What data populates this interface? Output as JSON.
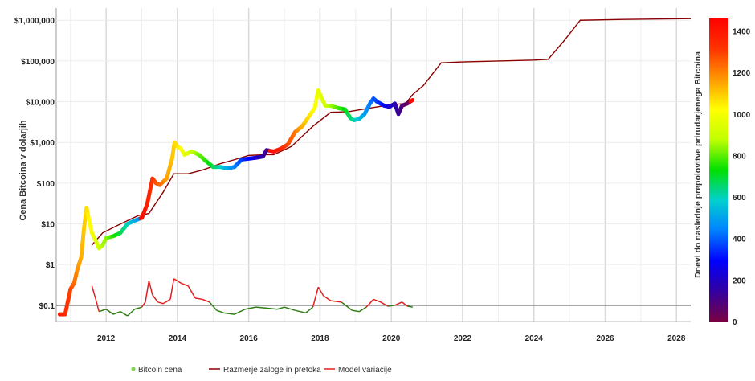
{
  "chart_data": {
    "type": "line",
    "ylabel": "Cena Bitcoina v dolarjih",
    "y_scale": "log",
    "ylim": [
      0.04,
      2000000
    ],
    "xlim": [
      2010.6,
      2028.4
    ],
    "x_ticks": [
      "2012",
      "2014",
      "2016",
      "2018",
      "2020",
      "2022",
      "2024",
      "2026",
      "2028"
    ],
    "y_ticks": [
      "$0.1",
      "$1",
      "$10",
      "$100",
      "$1,000",
      "$10,000",
      "$100,000",
      "$1,000,000"
    ],
    "reference_line_y": 0.1,
    "colorbar": {
      "label": "Dnevi do naslednje prepolovitve prirudarjenega Bitcoina",
      "min": 0,
      "max": 1460,
      "ticks": [
        "0",
        "200",
        "400",
        "600",
        "800",
        "1000",
        "1200",
        "1400"
      ],
      "tick_values": [
        0,
        200,
        400,
        600,
        800,
        1000,
        1200,
        1400
      ],
      "colors": [
        "#7a0043",
        "#3300a0",
        "#0000ff",
        "#0080ff",
        "#00d0d0",
        "#00e000",
        "#c0ff00",
        "#ffff00",
        "#ff9900",
        "#ff3300",
        "#ff0000"
      ]
    },
    "legend": {
      "placement": "bottom",
      "items": [
        {
          "label": "Bitcoin cena",
          "color": "#7ed348",
          "marker": "dot"
        },
        {
          "label": "Razmerje zaloge in pretoka",
          "color": "#8b0000",
          "marker": "line"
        },
        {
          "label": "Model variacije",
          "color": "#e02020",
          "marker": "line"
        }
      ]
    },
    "series": [
      {
        "name": "Bitcoin cena",
        "color_by": "days_to_halving",
        "x": [
          2010.7,
          2010.85,
          2011.0,
          2011.1,
          2011.2,
          2011.3,
          2011.38,
          2011.45,
          2011.5,
          2011.6,
          2011.7,
          2011.8,
          2011.9,
          2012.0,
          2012.2,
          2012.4,
          2012.6,
          2012.8,
          2012.9,
          2013.0,
          2013.15,
          2013.3,
          2013.4,
          2013.5,
          2013.7,
          2013.85,
          2013.92,
          2014.0,
          2014.1,
          2014.2,
          2014.4,
          2014.6,
          2014.8,
          2015.0,
          2015.2,
          2015.4,
          2015.6,
          2015.8,
          2016.0,
          2016.2,
          2016.4,
          2016.5,
          2016.7,
          2016.9,
          2017.1,
          2017.3,
          2017.5,
          2017.7,
          2017.85,
          2017.95,
          2018.05,
          2018.15,
          2018.3,
          2018.5,
          2018.7,
          2018.85,
          2018.95,
          2019.1,
          2019.25,
          2019.4,
          2019.5,
          2019.6,
          2019.8,
          2019.95,
          2020.1,
          2020.2,
          2020.3,
          2020.45,
          2020.6
        ],
        "y": [
          0.06,
          0.06,
          0.25,
          0.35,
          0.8,
          1.5,
          8,
          25,
          15,
          6,
          4,
          2.5,
          3,
          4.5,
          5,
          6,
          10,
          12,
          13,
          14,
          30,
          130,
          100,
          90,
          130,
          400,
          1000,
          800,
          700,
          500,
          600,
          500,
          350,
          250,
          250,
          230,
          250,
          380,
          400,
          420,
          450,
          650,
          600,
          700,
          900,
          1800,
          2500,
          4500,
          7000,
          19000,
          12000,
          8000,
          8000,
          7000,
          6500,
          4000,
          3500,
          3800,
          5000,
          9000,
          12000,
          10000,
          8000,
          7500,
          9000,
          5000,
          8000,
          9000,
          11000
        ],
        "days_to_halving": [
          1380,
          1340,
          1290,
          1240,
          1180,
          1140,
          1100,
          1070,
          1040,
          1000,
          960,
          920,
          860,
          840,
          760,
          680,
          600,
          520,
          480,
          1440,
          1380,
          1320,
          1280,
          1250,
          1160,
          1110,
          1080,
          1060,
          1020,
          980,
          900,
          820,
          760,
          680,
          600,
          520,
          450,
          370,
          300,
          220,
          150,
          110,
          1420,
          1360,
          1290,
          1220,
          1140,
          1060,
          1020,
          980,
          950,
          910,
          860,
          790,
          720,
          660,
          620,
          560,
          500,
          440,
          400,
          370,
          290,
          230,
          180,
          140,
          90,
          40,
          1420
        ]
      },
      {
        "name": "Razmerje zaloge in pretoka",
        "color": "#8b0000",
        "x": [
          2011.6,
          2011.9,
          2012.3,
          2012.6,
          2012.9,
          2013.2,
          2013.6,
          2013.9,
          2014.3,
          2014.7,
          2015.2,
          2015.7,
          2016.0,
          2016.5,
          2016.7,
          2017.2,
          2017.8,
          2018.3,
          2018.8,
          2019.4,
          2020.0,
          2020.4,
          2020.6,
          2020.9,
          2021.4,
          2022.0,
          2023.0,
          2024.0,
          2024.4,
          2024.8,
          2025.3,
          2026.5,
          2028.4
        ],
        "y": [
          3,
          6,
          9,
          12,
          16,
          18,
          60,
          170,
          170,
          210,
          300,
          400,
          480,
          500,
          500,
          800,
          2500,
          5500,
          5700,
          7000,
          8500,
          9000,
          15000,
          25000,
          90000,
          95000,
          100000,
          105000,
          110000,
          280000,
          1000000,
          1050000,
          1100000
        ]
      },
      {
        "name": "Model variacije",
        "color_by": "above_threshold",
        "colors": {
          "above": "#e02020",
          "below": "#2e7d12"
        },
        "threshold": 0.1,
        "x": [
          2011.6,
          2011.7,
          2011.8,
          2012.0,
          2012.2,
          2012.4,
          2012.6,
          2012.8,
          2013.0,
          2013.1,
          2013.2,
          2013.3,
          2013.45,
          2013.6,
          2013.8,
          2013.9,
          2014.1,
          2014.3,
          2014.5,
          2014.7,
          2014.9,
          2015.1,
          2015.3,
          2015.6,
          2015.9,
          2016.2,
          2016.5,
          2016.8,
          2017.0,
          2017.3,
          2017.6,
          2017.8,
          2017.95,
          2018.1,
          2018.3,
          2018.6,
          2018.9,
          2019.1,
          2019.3,
          2019.5,
          2019.7,
          2019.9,
          2020.1,
          2020.3,
          2020.45,
          2020.6
        ],
        "y": [
          0.3,
          0.15,
          0.07,
          0.08,
          0.06,
          0.07,
          0.055,
          0.08,
          0.09,
          0.12,
          0.4,
          0.18,
          0.12,
          0.11,
          0.14,
          0.45,
          0.35,
          0.3,
          0.15,
          0.14,
          0.12,
          0.075,
          0.065,
          0.06,
          0.08,
          0.09,
          0.085,
          0.08,
          0.09,
          0.075,
          0.065,
          0.09,
          0.28,
          0.17,
          0.13,
          0.12,
          0.075,
          0.07,
          0.09,
          0.14,
          0.12,
          0.095,
          0.1,
          0.12,
          0.095,
          0.09
        ]
      }
    ]
  }
}
